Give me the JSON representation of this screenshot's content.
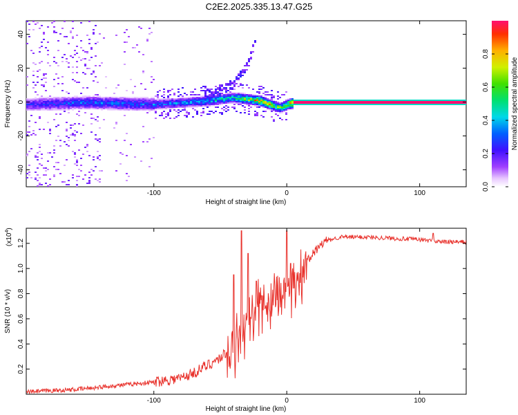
{
  "title": "C2E2.2025.335.13.47.G25",
  "chart_data": [
    {
      "type": "heatmap",
      "title": "C2E2.2025.335.13.47.G25",
      "xlabel": "Height of straight line (km)",
      "ylabel": "Frequency (Hz)",
      "xlim": [
        -196,
        135
      ],
      "ylim": [
        -50,
        48
      ],
      "xticks": [
        -100,
        0,
        100
      ],
      "xtick_labels": [
        "-100",
        "0",
        "100"
      ],
      "yticks": [
        -40,
        -20,
        0,
        20,
        40
      ],
      "ytick_labels": [
        "-40",
        "-20",
        "0",
        "20",
        "40"
      ],
      "colorbar": {
        "label": "Normalized spectral amplitude",
        "range": [
          0,
          1
        ],
        "ticks": [
          0.0,
          0.2,
          0.4,
          0.6,
          0.8
        ],
        "tick_labels": [
          "0.0",
          "0.2",
          "0.4",
          "0.6",
          "0.8"
        ]
      },
      "ridge": {
        "x": [
          -196,
          -150,
          -100,
          -60,
          -40,
          -20,
          -10,
          -5,
          0,
          5,
          135
        ],
        "y": [
          -1,
          0,
          -1,
          1,
          3,
          1,
          -2,
          -3,
          -1,
          0,
          0
        ],
        "peak_amplitude": [
          0.25,
          0.35,
          0.35,
          0.45,
          0.55,
          0.9,
          0.7,
          0.6,
          0.8,
          1.0,
          1.0
        ]
      },
      "branch": {
        "x": [
          -60,
          -50,
          -40,
          -30,
          -25
        ],
        "y": [
          5,
          7,
          12,
          22,
          35
        ]
      }
    },
    {
      "type": "line",
      "xlabel": "Height of straight line (km)",
      "ylabel": "SNR (10 * v/v)",
      "yscale_label": "(x10",
      "yscale_exp": "4",
      "yscale_close": ")",
      "xlim": [
        -196,
        135
      ],
      "ylim": [
        0.0,
        1.32
      ],
      "xticks": [
        -100,
        0,
        100
      ],
      "xtick_labels": [
        "-100",
        "0",
        "100"
      ],
      "yticks": [
        0.2,
        0.4,
        0.6,
        0.8,
        1.0,
        1.2
      ],
      "ytick_labels": [
        "0.2",
        "0.4",
        "0.6",
        "0.8",
        "1.0",
        "1.2"
      ],
      "series": [
        {
          "name": "SNR",
          "color": "#e8302a",
          "x": [
            -196,
            -180,
            -160,
            -140,
            -120,
            -100,
            -80,
            -70,
            -60,
            -50,
            -40,
            -35,
            -30,
            -25,
            -20,
            -15,
            -10,
            -5,
            0,
            5,
            10,
            15,
            20,
            25,
            30,
            40,
            60,
            80,
            100,
            110,
            120,
            135
          ],
          "y": [
            0.01,
            0.02,
            0.03,
            0.05,
            0.07,
            0.09,
            0.12,
            0.16,
            0.22,
            0.28,
            0.38,
            0.5,
            0.6,
            0.58,
            0.68,
            0.72,
            0.78,
            0.8,
            0.82,
            0.88,
            0.95,
            1.05,
            1.12,
            1.18,
            1.22,
            1.25,
            1.25,
            1.24,
            1.23,
            1.22,
            1.21,
            1.21
          ]
        }
      ],
      "spikes": [
        {
          "x": -40,
          "y": 0.95
        },
        {
          "x": -34,
          "y": 1.3
        },
        {
          "x": -29,
          "y": 1.12
        },
        {
          "x": -23,
          "y": 0.9
        },
        {
          "x": 0,
          "y": 1.3
        },
        {
          "x": 3,
          "y": 1.04
        },
        {
          "x": 110,
          "y": 1.28
        }
      ]
    }
  ]
}
